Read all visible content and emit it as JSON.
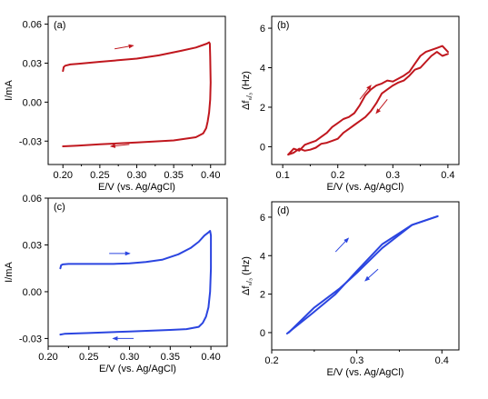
{
  "chart_data": [
    {
      "type": "line",
      "panel_label": "(a)",
      "xlabel": "E/V (vs. Ag/AgCl)",
      "ylabel": "I/mA",
      "xlim": [
        0.18,
        0.42
      ],
      "ylim": [
        -0.048,
        0.066
      ],
      "xticks": [
        "0.20",
        "0.25",
        "0.30",
        "0.35",
        "0.40"
      ],
      "yticks": [
        "0.06",
        "0.03",
        "0.00",
        "-0.03"
      ],
      "color": "#c0171e",
      "series": [
        {
          "x": [
            0.2,
            0.201,
            0.203,
            0.21,
            0.22,
            0.25,
            0.28,
            0.3,
            0.33,
            0.36,
            0.38,
            0.395,
            0.398,
            0.399,
            0.3995,
            0.4,
            0.3995,
            0.398,
            0.396,
            0.394,
            0.39,
            0.38,
            0.35,
            0.3,
            0.25,
            0.22,
            0.2
          ],
          "y": [
            0.024,
            0.027,
            0.028,
            0.029,
            0.0295,
            0.031,
            0.0325,
            0.0335,
            0.036,
            0.0395,
            0.042,
            0.045,
            0.046,
            0.045,
            0.035,
            0.015,
            0.002,
            -0.008,
            -0.015,
            -0.02,
            -0.024,
            -0.027,
            -0.0295,
            -0.031,
            -0.0325,
            -0.0335,
            -0.034
          ]
        }
      ],
      "arrows": [
        {
          "from": [
            0.27,
            0.041
          ],
          "to": [
            0.295,
            0.0435
          ]
        },
        {
          "from": [
            0.29,
            -0.0325
          ],
          "to": [
            0.265,
            -0.034
          ]
        }
      ]
    },
    {
      "type": "line",
      "panel_label": "(b)",
      "xlabel": "E/V (vs. Ag/AgCl)",
      "ylabel": "Δfₙ/₃ (Hz)",
      "xlim": [
        0.08,
        0.42
      ],
      "ylim": [
        -0.9,
        6.6
      ],
      "xticks": [
        "0.1",
        "0.2",
        "0.3",
        "0.4"
      ],
      "yticks": [
        "0",
        "2",
        "4",
        "6"
      ],
      "color": "#c0171e",
      "series": [
        {
          "x": [
            0.11,
            0.12,
            0.13,
            0.14,
            0.15,
            0.16,
            0.17,
            0.18,
            0.19,
            0.2,
            0.21,
            0.22,
            0.23,
            0.24,
            0.25,
            0.26,
            0.27,
            0.28,
            0.29,
            0.3,
            0.31,
            0.32,
            0.33,
            0.34,
            0.35,
            0.36,
            0.37,
            0.38,
            0.39,
            0.4
          ],
          "y": [
            -0.4,
            -0.1,
            -0.2,
            0.1,
            0.2,
            0.3,
            0.5,
            0.7,
            1.0,
            1.2,
            1.4,
            1.5,
            1.7,
            2.1,
            2.6,
            2.9,
            3.1,
            3.2,
            3.35,
            3.3,
            3.45,
            3.6,
            3.8,
            4.2,
            4.6,
            4.8,
            4.9,
            5.0,
            5.1,
            4.8
          ]
        },
        {
          "x": [
            0.4,
            0.39,
            0.38,
            0.37,
            0.36,
            0.35,
            0.34,
            0.33,
            0.32,
            0.31,
            0.3,
            0.29,
            0.28,
            0.27,
            0.26,
            0.25,
            0.24,
            0.23,
            0.22,
            0.21,
            0.2,
            0.19,
            0.18,
            0.17,
            0.16,
            0.15,
            0.14,
            0.13,
            0.12,
            0.11
          ],
          "y": [
            4.7,
            4.6,
            4.8,
            4.6,
            4.3,
            4.0,
            3.9,
            3.6,
            3.35,
            3.25,
            3.1,
            2.9,
            2.7,
            2.2,
            1.8,
            1.5,
            1.3,
            1.1,
            0.9,
            0.7,
            0.4,
            0.3,
            0.2,
            0.15,
            -0.05,
            -0.15,
            -0.2,
            -0.1,
            -0.3,
            -0.4
          ]
        }
      ],
      "arrows": [
        {
          "from": [
            0.24,
            2.4
          ],
          "to": [
            0.26,
            3.1
          ]
        },
        {
          "from": [
            0.29,
            2.4
          ],
          "to": [
            0.27,
            1.7
          ]
        }
      ]
    },
    {
      "type": "line",
      "panel_label": "(c)",
      "xlabel": "E/V (vs. Ag/AgCl)",
      "ylabel": "I/mA",
      "xlim": [
        0.2,
        0.42
      ],
      "ylim": [
        -0.035,
        0.06
      ],
      "xticks": [
        "0.20",
        "0.25",
        "0.30",
        "0.35",
        "0.40"
      ],
      "yticks": [
        "0.06",
        "0.03",
        "0.00",
        "-0.03"
      ],
      "color": "#2b45e0",
      "series": [
        {
          "x": [
            0.215,
            0.216,
            0.218,
            0.225,
            0.25,
            0.28,
            0.3,
            0.32,
            0.34,
            0.36,
            0.375,
            0.385,
            0.392,
            0.397,
            0.399,
            0.4,
            0.4,
            0.399,
            0.397,
            0.394,
            0.39,
            0.385,
            0.37,
            0.35,
            0.3,
            0.25,
            0.22,
            0.215
          ],
          "y": [
            0.015,
            0.017,
            0.0175,
            0.0178,
            0.0178,
            0.0178,
            0.0182,
            0.019,
            0.0205,
            0.024,
            0.028,
            0.032,
            0.036,
            0.038,
            0.039,
            0.036,
            0.015,
            0.0,
            -0.01,
            -0.016,
            -0.02,
            -0.0225,
            -0.024,
            -0.0245,
            -0.0255,
            -0.0265,
            -0.027,
            -0.0275
          ]
        }
      ],
      "arrows": [
        {
          "from": [
            0.275,
            0.0245
          ],
          "to": [
            0.3,
            0.0245
          ]
        },
        {
          "from": [
            0.305,
            -0.03
          ],
          "to": [
            0.28,
            -0.03
          ]
        }
      ]
    },
    {
      "type": "line",
      "panel_label": "(d)",
      "xlabel": "E/V (vs. Ag/AgCl)",
      "ylabel": "Δfₙ/₃ (Hz)",
      "xlim": [
        0.2,
        0.42
      ],
      "ylim": [
        -0.9,
        6.8
      ],
      "xticks": [
        "0.2",
        "0.3",
        "0.4"
      ],
      "yticks": [
        "0",
        "2",
        "4",
        "6"
      ],
      "color": "#2b45e0",
      "series": [
        {
          "x": [
            0.22,
            0.25,
            0.28,
            0.3,
            0.33,
            0.365,
            0.395
          ],
          "y": [
            0.0,
            1.3,
            2.3,
            3.1,
            4.4,
            5.6,
            6.05
          ]
        },
        {
          "x": [
            0.395,
            0.365,
            0.33,
            0.3,
            0.275,
            0.245,
            0.218
          ],
          "y": [
            6.05,
            5.6,
            4.6,
            3.2,
            2.0,
            0.9,
            -0.05
          ]
        }
      ],
      "arrows": [
        {
          "from": [
            0.275,
            4.2
          ],
          "to": [
            0.29,
            4.9
          ]
        },
        {
          "from": [
            0.325,
            3.3
          ],
          "to": [
            0.31,
            2.7
          ]
        }
      ]
    }
  ]
}
